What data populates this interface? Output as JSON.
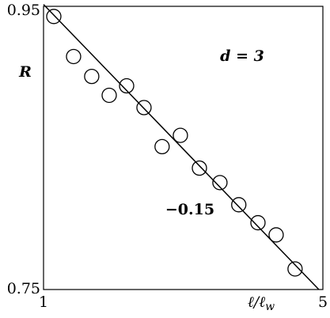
{
  "chart_data": {
    "type": "scatter",
    "xlabel": {
      "base": "ℓ/ℓ",
      "sub": "w"
    },
    "ylabel": "R",
    "annotations": [
      "d = 3",
      "−0.15"
    ],
    "xscale": "log",
    "yscale": "log",
    "xlim": [
      1,
      5
    ],
    "ylim": [
      0.75,
      0.95
    ],
    "xticks": [
      1,
      5
    ],
    "yticks": [
      0.75,
      0.95
    ],
    "series": [
      {
        "color": "#000000",
        "x": [
          1.061,
          1.189,
          1.32,
          1.46,
          1.614,
          1.784,
          1.98,
          2.2,
          2.455,
          2.763,
          3.08,
          3.44,
          3.82,
          4.26
        ],
        "values": [
          0.942,
          0.911,
          0.896,
          0.882,
          0.889,
          0.873,
          0.845,
          0.853,
          0.83,
          0.82,
          0.805,
          0.793,
          0.785,
          0.763
        ]
      },
      {
        "type": "line",
        "color": "#000000",
        "x": [
          1,
          4.886
        ],
        "values": [
          0.9515,
          0.75
        ]
      }
    ]
  }
}
